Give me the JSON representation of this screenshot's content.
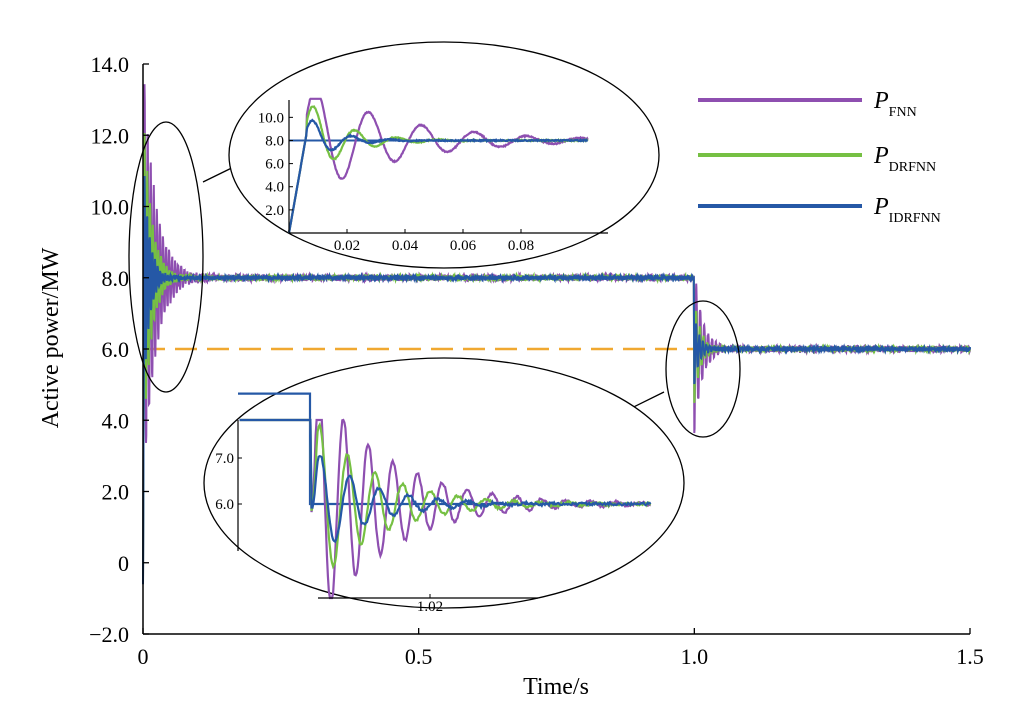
{
  "chart_data": {
    "type": "line",
    "xlabel": "Time/s",
    "ylabel": "Active power/MW",
    "xlim": [
      0,
      1.5
    ],
    "ylim": [
      -2.0,
      14.0
    ],
    "xticks": [
      "0",
      "0.5",
      "1.0",
      "1.5"
    ],
    "yticks": [
      "−2.0",
      "0",
      "2.0",
      "4.0",
      "6.0",
      "8.0",
      "10.0",
      "12.0",
      "14.0"
    ],
    "grid": false,
    "legend_position": "top-right",
    "legend": [
      {
        "main": "P",
        "sub": "FNN"
      },
      {
        "main": "P",
        "sub": "DRFNN"
      },
      {
        "main": "P",
        "sub": "IDRFNN"
      }
    ],
    "colors": {
      "FNN": "#8e4fb0",
      "DRFNN": "#76c043",
      "IDRFNN": "#2558a6",
      "reference": "#f0a830",
      "axis": "#000000"
    },
    "reference": {
      "name": "reference",
      "style": "dashed",
      "value": 6.0,
      "x_range": [
        0,
        1.0
      ]
    },
    "setpoint": {
      "before": 8.0,
      "after": 6.0,
      "step_time": 1.0
    },
    "series": [
      {
        "name": "P_FNN",
        "peak": 13.5,
        "min_after_start": 3.5,
        "dip_at_step": 3.6
      },
      {
        "name": "P_DRFNN",
        "peak": 12.2,
        "dip_at_step": 4.5
      },
      {
        "name": "P_IDRFNN",
        "peak": 10.5,
        "dip_at_step": 5.0
      }
    ],
    "insets": [
      {
        "name": "startup-zoom",
        "xticks": [
          "0.02",
          "0.04",
          "0.06",
          "0.08"
        ],
        "yticks": [
          "2.0",
          "4.0",
          "6.0",
          "8.0",
          "10.0"
        ],
        "xlim": [
          0,
          0.11
        ],
        "ylim": [
          0,
          11.5
        ],
        "setpoint": 8.0
      },
      {
        "name": "step-zoom",
        "xticks": [
          "1.02"
        ],
        "yticks": [
          "6.0",
          "7.0"
        ]
      }
    ]
  }
}
